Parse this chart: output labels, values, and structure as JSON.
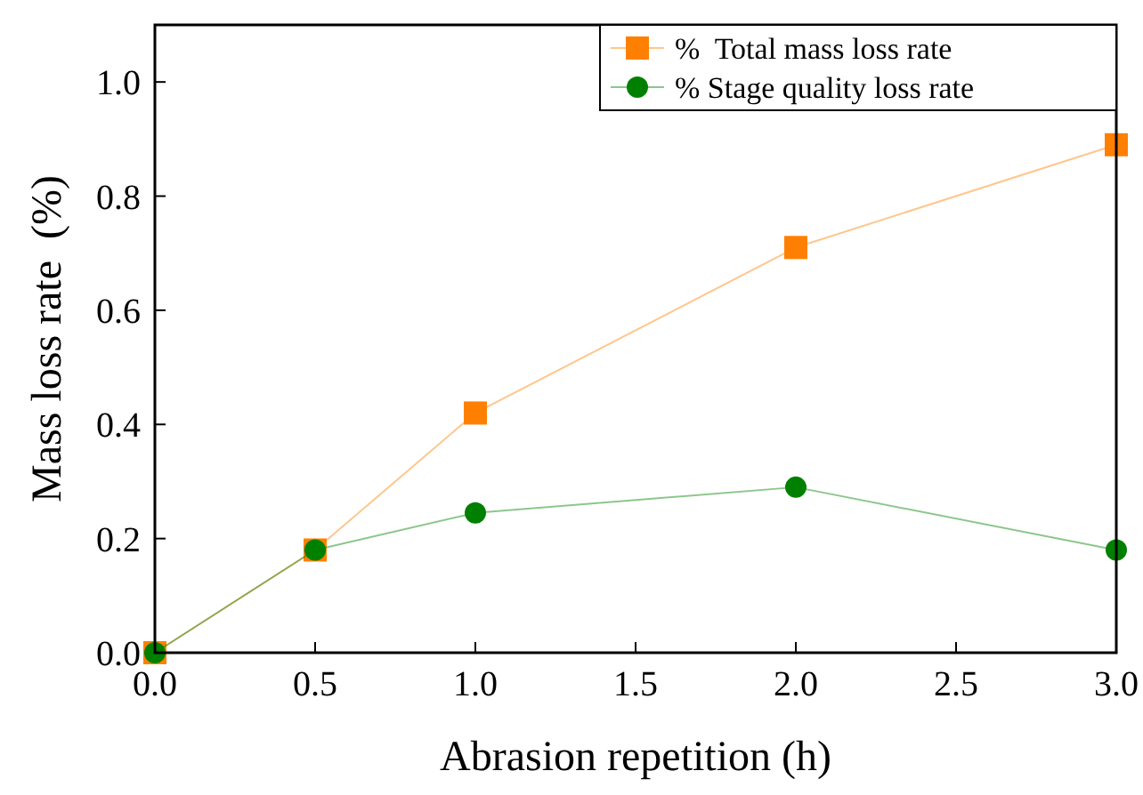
{
  "chart_data": {
    "type": "line",
    "xlabel": "Abrasion repetition (h)",
    "ylabel": "Mass loss rate  (%)",
    "x": [
      0,
      0.5,
      1,
      2,
      3
    ],
    "series": [
      {
        "name": "%  Total mass loss rate",
        "color": "#ff8000",
        "marker": "square",
        "values": [
          0,
          0.18,
          0.42,
          0.71,
          0.89
        ]
      },
      {
        "name": "% Stage quality loss rate",
        "color": "#008000",
        "marker": "circle",
        "values": [
          0,
          0.18,
          0.245,
          0.29,
          0.18
        ]
      }
    ],
    "xlim": [
      0,
      3
    ],
    "xticks": [
      {
        "value": 0,
        "label": "0.0"
      },
      {
        "value": 0.5,
        "label": "0.5"
      },
      {
        "value": 1,
        "label": "1.0"
      },
      {
        "value": 1.5,
        "label": "1.5"
      },
      {
        "value": 2,
        "label": "2.0"
      },
      {
        "value": 2.5,
        "label": "2.5"
      },
      {
        "value": 3,
        "label": "3.0"
      }
    ],
    "ylim": [
      0,
      1.1
    ],
    "yticks": [
      {
        "value": 0,
        "label": "0.0"
      },
      {
        "value": 0.2,
        "label": "0.2"
      },
      {
        "value": 0.4,
        "label": "0.4"
      },
      {
        "value": 0.6,
        "label": "0.6"
      },
      {
        "value": 0.8,
        "label": "0.8"
      },
      {
        "value": 1,
        "label": "1.0"
      }
    ],
    "grid": false,
    "legend": "top right"
  }
}
